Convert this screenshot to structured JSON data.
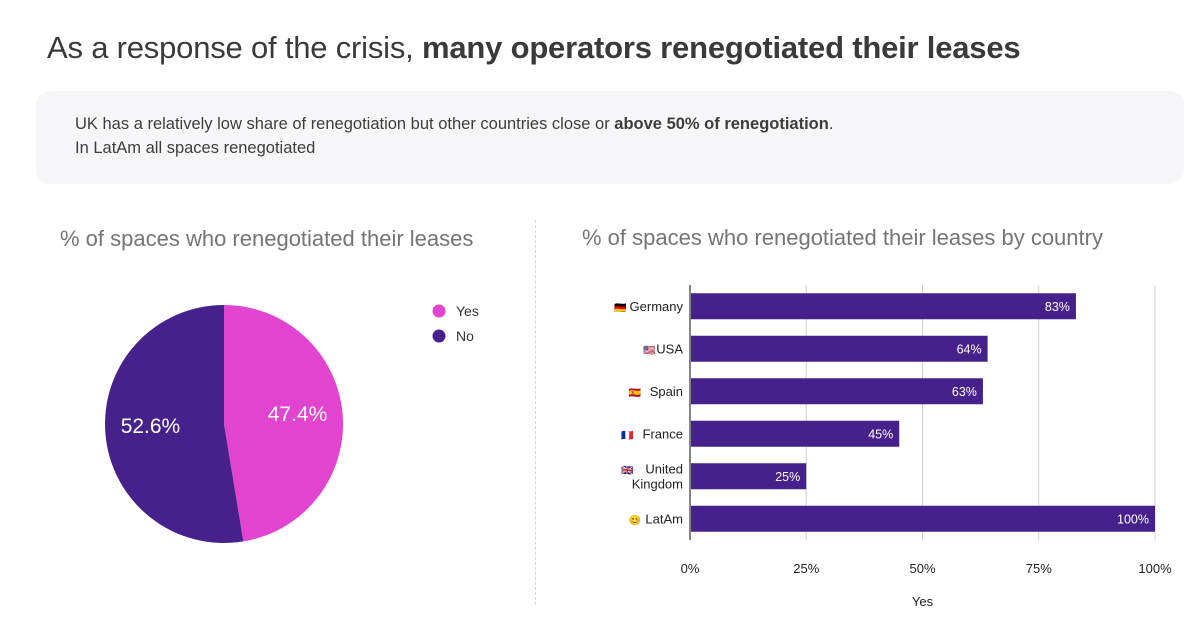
{
  "header": {
    "title_regular": "As a response of the crisis, ",
    "title_bold": "many operators renegotiated their leases"
  },
  "callout": {
    "line1_regular": "UK has a relatively low share of renegotiation but other countries close or ",
    "line1_bold": "above 50% of renegotiation",
    "line1_end": ".",
    "line2": "In LatAm all spaces renegotiated"
  },
  "colors": {
    "yes": "#e243cf",
    "no": "#46218c",
    "bar": "#46218c"
  },
  "chart_data": [
    {
      "type": "pie",
      "title": "% of spaces who renegotiated their leases",
      "slices": [
        {
          "label": "Yes",
          "value": 47.4,
          "display": "47.4%",
          "color": "#e243cf"
        },
        {
          "label": "No",
          "value": 52.6,
          "display": "52.6%",
          "color": "#46218c"
        }
      ],
      "legend": "right"
    },
    {
      "type": "bar",
      "orientation": "horizontal",
      "title": "% of spaces who renegotiated their leases by country",
      "categories": [
        {
          "flag": "🇩🇪",
          "name": [
            "Germany"
          ]
        },
        {
          "flag": "🇺🇸",
          "name": [
            "USA"
          ]
        },
        {
          "flag": "🇪🇸",
          "name": [
            "Spain"
          ]
        },
        {
          "flag": "🇫🇷",
          "name": [
            "France"
          ]
        },
        {
          "flag": "🇬🇧",
          "name": [
            "United",
            "Kingdom"
          ]
        },
        {
          "flag": "😊",
          "name": [
            "LatAm"
          ]
        }
      ],
      "values": [
        83,
        64,
        63,
        45,
        25,
        100
      ],
      "labels": [
        "83%",
        "64%",
        "63%",
        "45%",
        "25%",
        "100%"
      ],
      "xlabel": "Yes",
      "xlim": [
        0,
        100
      ],
      "xticks": [
        "0%",
        "25%",
        "50%",
        "75%",
        "100%"
      ],
      "grid": true
    }
  ]
}
